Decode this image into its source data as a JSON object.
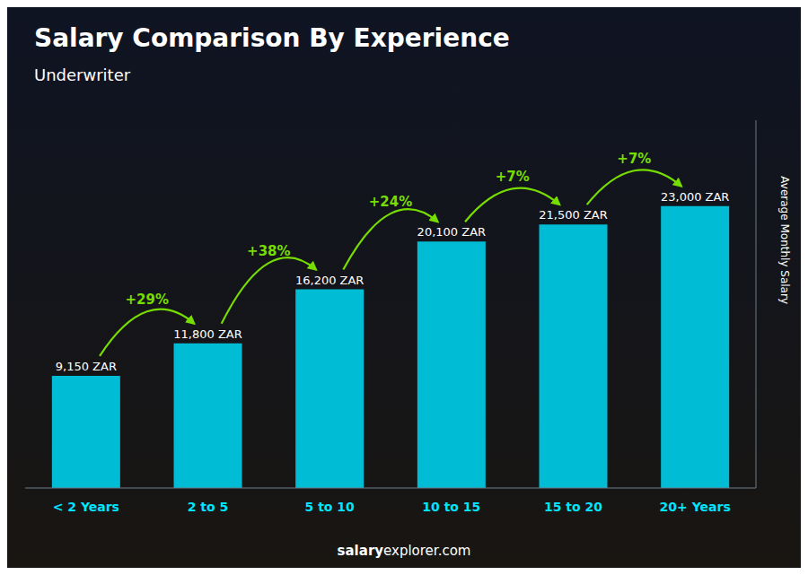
{
  "chart_data": {
    "type": "bar",
    "title": "Salary Comparison By Experience",
    "subtitle": "Underwriter",
    "categories": [
      "< 2 Years",
      "2 to 5",
      "5 to 10",
      "10 to 15",
      "15 to 20",
      "20+ Years"
    ],
    "values": [
      9150,
      11800,
      16200,
      20100,
      21500,
      23000
    ],
    "value_labels": [
      "9,150 ZAR",
      "11,800 ZAR",
      "16,200 ZAR",
      "20,100 ZAR",
      "21,500 ZAR",
      "23,000 ZAR"
    ],
    "data_labels": true,
    "annotations": [
      "+29%",
      "+38%",
      "+24%",
      "+7%",
      "+7%"
    ],
    "ylabel": "Average Monthly Salary",
    "footer": [
      "salary",
      "explorer.com"
    ],
    "color": "#00bcd4",
    "ylim": [
      0,
      30000
    ],
    "tick_labels": "x",
    "grid": false
  }
}
